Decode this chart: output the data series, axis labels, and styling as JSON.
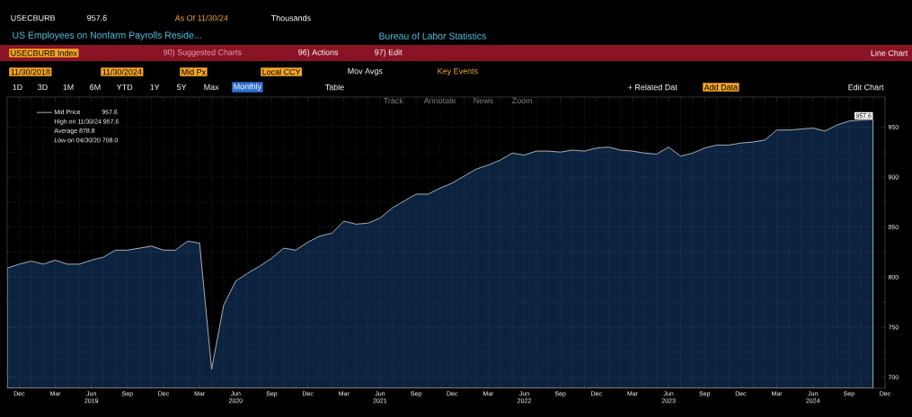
{
  "chart_data": {
    "type": "area",
    "title": "US Employees on Nonfarm Payrolls Reside...",
    "subtitle": "Bureau of Labor Statistics",
    "x": [
      "2018-11",
      "2018-12",
      "2019-01",
      "2019-02",
      "2019-03",
      "2019-04",
      "2019-05",
      "2019-06",
      "2019-07",
      "2019-08",
      "2019-09",
      "2019-10",
      "2019-11",
      "2019-12",
      "2020-01",
      "2020-02",
      "2020-03",
      "2020-04",
      "2020-05",
      "2020-06",
      "2020-07",
      "2020-08",
      "2020-09",
      "2020-10",
      "2020-11",
      "2020-12",
      "2021-01",
      "2021-02",
      "2021-03",
      "2021-04",
      "2021-05",
      "2021-06",
      "2021-07",
      "2021-08",
      "2021-09",
      "2021-10",
      "2021-11",
      "2021-12",
      "2022-01",
      "2022-02",
      "2022-03",
      "2022-04",
      "2022-05",
      "2022-06",
      "2022-07",
      "2022-08",
      "2022-09",
      "2022-10",
      "2022-11",
      "2022-12",
      "2023-01",
      "2023-02",
      "2023-03",
      "2023-04",
      "2023-05",
      "2023-06",
      "2023-07",
      "2023-08",
      "2023-09",
      "2023-10",
      "2023-11",
      "2023-12",
      "2024-01",
      "2024-02",
      "2024-03",
      "2024-04",
      "2024-05",
      "2024-06",
      "2024-07",
      "2024-08",
      "2024-09",
      "2024-10",
      "2024-11"
    ],
    "series": [
      {
        "name": "Mid Price",
        "color": "#0c2340",
        "values": [
          809,
          813,
          816,
          813,
          817,
          813,
          813,
          817,
          820,
          827,
          827,
          829,
          831,
          827,
          827,
          836,
          834,
          708,
          772,
          796,
          804,
          811,
          819,
          829,
          827,
          835,
          841,
          844,
          856,
          853,
          854,
          859,
          869,
          876,
          883,
          883,
          889,
          894,
          901,
          908,
          912,
          917,
          924,
          922,
          926,
          926,
          925,
          927,
          926,
          929,
          930,
          927,
          926,
          924,
          923,
          930,
          921,
          924,
          929,
          932,
          932,
          934,
          935,
          937,
          947,
          947,
          948,
          949,
          946,
          952,
          956,
          957,
          957.6
        ]
      }
    ],
    "xlim": [
      "2018-11",
      "2024-12"
    ],
    "xticks": [
      {
        "value": "2018-12",
        "label": "Dec"
      },
      {
        "value": "2019-03",
        "label": "Mar"
      },
      {
        "value": "2019-06",
        "label": "Jun 2019"
      },
      {
        "value": "2019-09",
        "label": "Sep"
      },
      {
        "value": "2019-12",
        "label": "Dec"
      },
      {
        "value": "2020-03",
        "label": "Mar"
      },
      {
        "value": "2020-06",
        "label": "Jun 2020"
      },
      {
        "value": "2020-09",
        "label": "Sep"
      },
      {
        "value": "2020-12",
        "label": "Dec"
      },
      {
        "value": "2021-03",
        "label": "Mar"
      },
      {
        "value": "2021-06",
        "label": "Jun 2021"
      },
      {
        "value": "2021-09",
        "label": "Sep"
      },
      {
        "value": "2021-12",
        "label": "Dec"
      },
      {
        "value": "2022-03",
        "label": "Mar"
      },
      {
        "value": "2022-06",
        "label": "Jun 2022"
      },
      {
        "value": "2022-09",
        "label": "Sep"
      },
      {
        "value": "2022-12",
        "label": "Dec"
      },
      {
        "value": "2023-03",
        "label": "Mar"
      },
      {
        "value": "2023-06",
        "label": "Jun 2023"
      },
      {
        "value": "2023-09",
        "label": "Sep"
      },
      {
        "value": "2023-12",
        "label": "Dec"
      },
      {
        "value": "2024-03",
        "label": "Mar"
      },
      {
        "value": "2024-06",
        "label": "Jun 2024"
      },
      {
        "value": "2024-09",
        "label": "Sep"
      },
      {
        "value": "2024-12",
        "label": "Dec"
      }
    ],
    "ylim": [
      689,
      980
    ],
    "yticks": [
      700,
      750,
      800,
      850,
      900,
      950
    ],
    "grid": true,
    "legend": "top left",
    "annotations": [
      "USECBURB",
      "957.6",
      "As Of 11/30/24",
      "Thousands",
      "USECBURB Index",
      "90) Suggested Charts",
      "96) Actions",
      "97) Edit",
      "Line Chart",
      "11/30/2018",
      "11/30/2024",
      "Mid Px",
      "Local CCY",
      "Mov Avgs",
      "Key Events",
      "1D",
      "3D",
      "1M",
      "6M",
      "YTD",
      "1Y",
      "5Y",
      "Max",
      "Monthly",
      "Table",
      "+ Related Dat",
      "Add Data",
      "Edit Chart",
      "Track",
      "Annotate",
      "News",
      "Zoom",
      "957.6",
      "High on 11/30/24 957.6",
      "Average 878.8",
      "Low on 04/30/20 708.0",
      {
        "text": "957.6",
        "x": "2024-11",
        "y": 957.6
      }
    ]
  }
}
